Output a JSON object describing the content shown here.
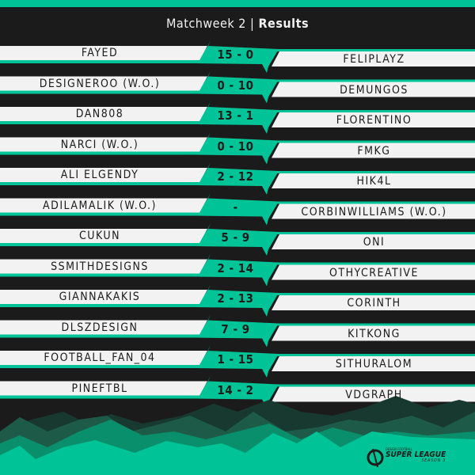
{
  "header": {
    "title": "Matchweek 2",
    "separator": "|",
    "subtitle": "Results"
  },
  "matches": [
    {
      "home": "FAYED",
      "score": "15 - 0",
      "away": "FELIPLAYZ"
    },
    {
      "home": "DESIGNEROO (W.O.)",
      "score": "0 - 10",
      "away": "DEMUNGOS"
    },
    {
      "home": "DAN808",
      "score": "13 - 1",
      "away": "FLORENTINO"
    },
    {
      "home": "NARCI (W.O.)",
      "score": "0 - 10",
      "away": "FMKG"
    },
    {
      "home": "ALI ELGENDY",
      "score": "2 - 12",
      "away": "HIK4L"
    },
    {
      "home": "ADILAMALIK (W.O.)",
      "score": "-",
      "away": "CORBINWILLIAMS (W.O.)"
    },
    {
      "home": "CUKUN",
      "score": "5 - 9",
      "away": "ONI"
    },
    {
      "home": "SSMITHDESIGNS",
      "score": "2 - 14",
      "away": "OTHYCREATIVE"
    },
    {
      "home": "GIANNAKAKIS",
      "score": "2 - 13",
      "away": "CORINTH"
    },
    {
      "home": "DLSZDESIGN",
      "score": "7 - 9",
      "away": "KITKONG"
    },
    {
      "home": "FOOTBALL_FAN_04",
      "score": "1 - 15",
      "away": "SITHURALOM"
    },
    {
      "home": "PINEFTBL",
      "score": "14 - 2",
      "away": "VDGRAPH"
    }
  ],
  "logo": {
    "line1": "DESIGN FOOTBALL",
    "line2": "SUPER LEAGUE",
    "line3": "SEASON 3"
  },
  "colors": {
    "accent": "#00c497",
    "background": "#1b1b1b",
    "bar": "#f2f2f2"
  }
}
